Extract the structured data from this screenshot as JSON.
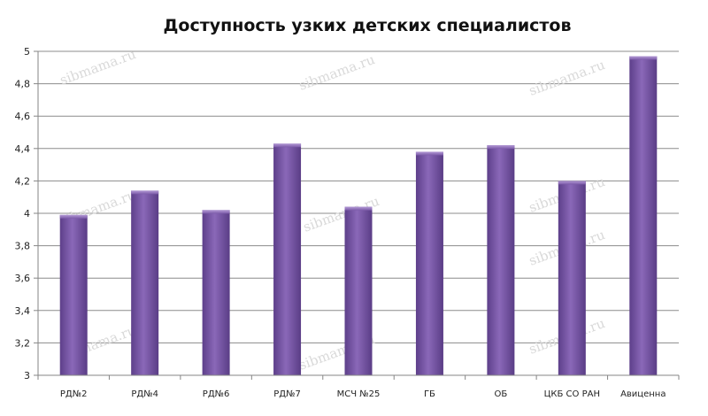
{
  "chart_data": {
    "type": "bar",
    "title": "Доступность узких детских специалистов",
    "xlabel": "",
    "ylabel": "",
    "categories": [
      "РД№2",
      "РД№4",
      "РД№6",
      "РД№7",
      "МСЧ №25",
      "ГБ",
      "ОБ",
      "ЦКБ СО РАН",
      "Авиценна"
    ],
    "values": [
      3.99,
      4.14,
      4.02,
      4.43,
      4.04,
      4.38,
      4.42,
      4.2,
      4.97
    ],
    "ylim": [
      3,
      5
    ],
    "yticks": [
      "3",
      "3,2",
      "3,4",
      "3,6",
      "3,8",
      "4",
      "4,2",
      "4,4",
      "4,6",
      "4,8",
      "5"
    ],
    "grid": true,
    "legend": "none",
    "bar_color": "#7b5aa8",
    "watermark": "sibmama.ru"
  }
}
